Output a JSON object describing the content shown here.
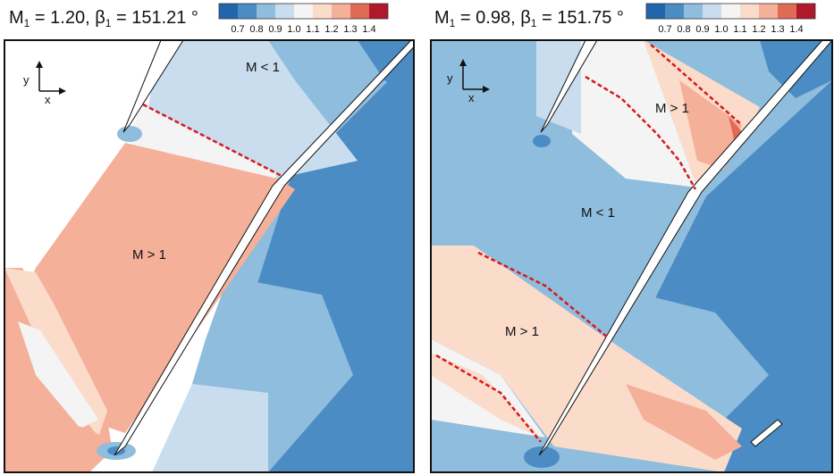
{
  "colorbar": {
    "ticks": [
      "0.7",
      "0.8",
      "0.9",
      "1.0",
      "1.1",
      "1.2",
      "1.3",
      "1.4"
    ],
    "colors": [
      "#2166ac",
      "#4b8cc4",
      "#8fbddd",
      "#c9ddee",
      "#f4f4f4",
      "#fbdccb",
      "#f5b09a",
      "#e06b55",
      "#b2182b"
    ]
  },
  "panels": [
    {
      "mach_value": "1.20",
      "beta_value": "151.21",
      "title_text": {
        "m_sym": "M",
        "m_sub": "1",
        "eq1": " = 1.20, ",
        "b_sym": "β",
        "b_sub": "1",
        "eq2": " = 151.21 °"
      },
      "region_labels": [
        "M < 1",
        "M > 1"
      ],
      "axis_labels": {
        "y": "y",
        "x": "x"
      }
    },
    {
      "mach_value": "0.98",
      "beta_value": "151.75",
      "title_text": {
        "m_sym": "M",
        "m_sub": "1",
        "eq1": " = 0.98, ",
        "b_sym": "β",
        "b_sub": "1",
        "eq2": " = 151.75 °"
      },
      "region_labels": [
        "M > 1",
        "M < 1",
        "M > 1"
      ],
      "axis_labels": {
        "y": "y",
        "x": "x"
      }
    }
  ],
  "legend_colors": {
    "shock_line": "#d7191c",
    "subsonic": "#4b8cc4",
    "supersonic": "#f5b09a"
  }
}
